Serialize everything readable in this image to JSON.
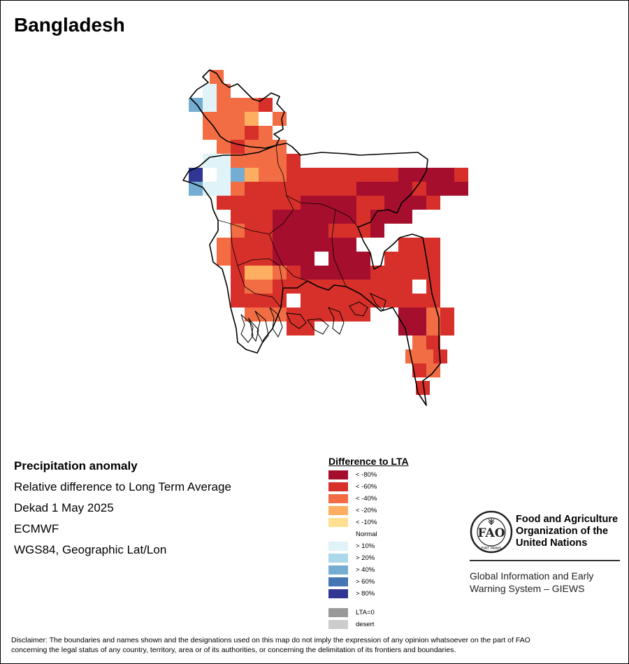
{
  "title": "Bangladesh",
  "info": {
    "heading": "Precipitation anomaly",
    "line1": "Relative difference to Long Term Average",
    "line2": "Dekad 1 May 2025",
    "line3": "ECMWF",
    "line4": "WGS84, Geographic Lat/Lon"
  },
  "legend": {
    "title": "Difference to LTA",
    "items": [
      {
        "label": "< -80%",
        "color": "#a50f2d"
      },
      {
        "label": "< -60%",
        "color": "#d7302a"
      },
      {
        "label": "< -40%",
        "color": "#f26d44"
      },
      {
        "label": "< -20%",
        "color": "#fdae61"
      },
      {
        "label": "< -10%",
        "color": "#fee090"
      },
      {
        "label": "Normal",
        "color": "#ffffff"
      },
      {
        "label": "> 10%",
        "color": "#e0f3f8"
      },
      {
        "label": "> 20%",
        "color": "#abd9e9"
      },
      {
        "label": "> 40%",
        "color": "#74add1"
      },
      {
        "label": "> 60%",
        "color": "#4575b4"
      },
      {
        "label": "> 80%",
        "color": "#313695"
      }
    ],
    "extra": [
      {
        "label": "LTA=0",
        "color": "#999999"
      },
      {
        "label": "desert",
        "color": "#cccccc"
      }
    ]
  },
  "org": {
    "name_line1": "Food and Agriculture",
    "name_line2": "Organization of the",
    "name_line3": "United Nations",
    "system_line1": "Global Information and Early",
    "system_line2": "Warning System – GIEWS",
    "logo_text": "FIAT PANIS"
  },
  "disclaimer_line1": "Disclaimer: The boundaries and names shown and the designations used on this map do not imply the expression of any opinion whatsoever on the part of FAO",
  "disclaimer_line2": "concerning the legal status of any country, territory, area or of its authorities, or concerning the delimitation of its frontiers and boundaries."
}
